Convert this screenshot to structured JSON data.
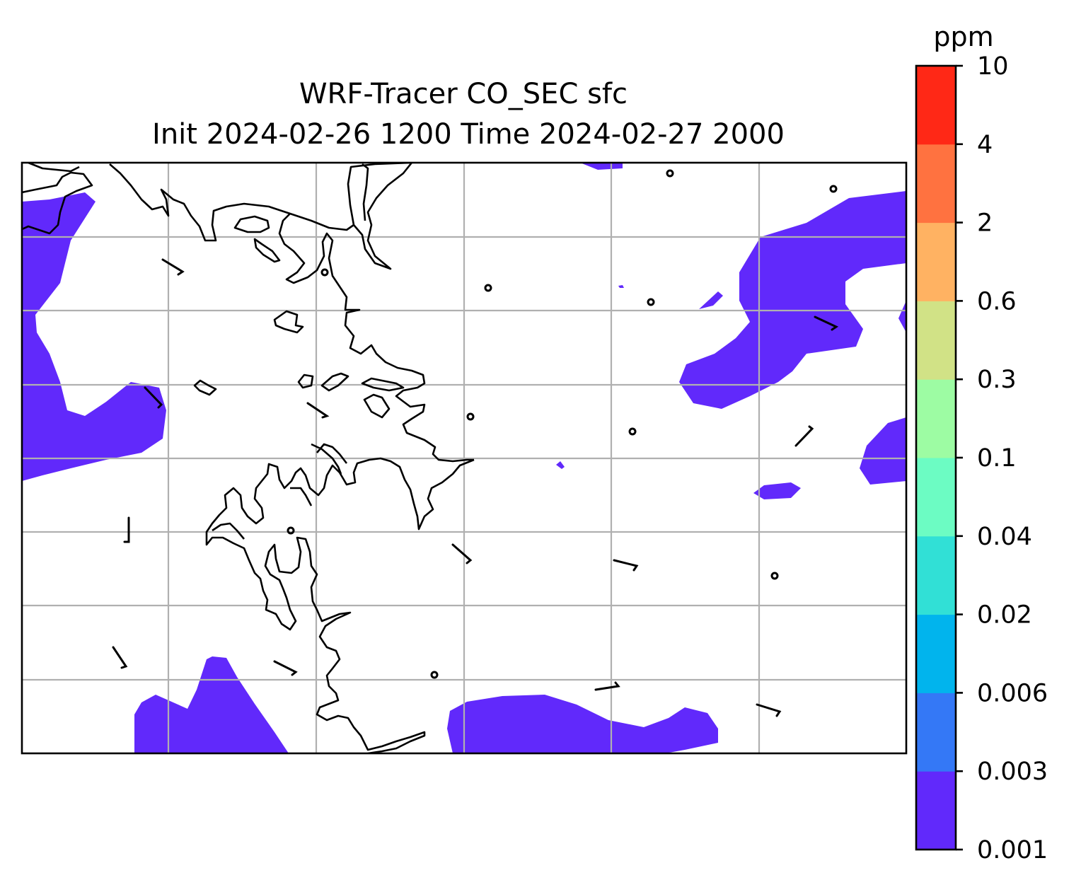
{
  "figure": {
    "title": "WRF-Tracer CO_SEC sfc",
    "subtitle": "Init 2024-02-26 1200 Time 2024-02-27 2000"
  },
  "map": {
    "field": "CO_SEC",
    "level": "sfc",
    "fill_color": "#6129fb",
    "coastline_color": "#000000",
    "gridline_color": "#b0b0b0",
    "gridlines": true,
    "features": [
      "coastline",
      "contour-fill",
      "wind-barbs",
      "calm-wind-circles"
    ]
  },
  "colorbar": {
    "unit": "ppm",
    "levels": [
      "0.001",
      "0.003",
      "0.006",
      "0.02",
      "0.04",
      "0.1",
      "0.3",
      "0.6",
      "2",
      "4",
      "10"
    ],
    "colors": [
      "#6129fb",
      "#3478f6",
      "#01b4ed",
      "#31e0d6",
      "#6cfcc3",
      "#9dfca3",
      "#d1e286",
      "#ffb262",
      "#ff7240",
      "#ff2816"
    ]
  }
}
